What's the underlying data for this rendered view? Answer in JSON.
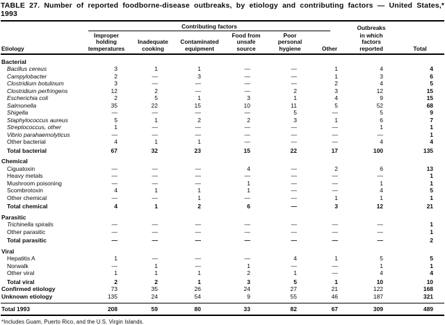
{
  "title": "TABLE 27. Number of reported foodborne-disease outbreaks, by etiology and contributing factors — United States,* 1993",
  "header": {
    "etiology_label": "Etiology",
    "contributing_factors_label": "Contributing factors",
    "outbreaks_label_top": "Outbreaks",
    "outbreaks_label_rest": "in which\nfactors\nreported",
    "total_label": "Total",
    "factor_columns": [
      "Improper\nholding\ntemperatures",
      "Inadequate\ncooking",
      "Contaminated\nequipment",
      "Food from\nunsafe\nsource",
      "Poor\npersonal\nhygiene",
      "Other"
    ]
  },
  "sections": [
    {
      "name": "Bacterial",
      "rows": [
        {
          "label": "Bacillus cereus",
          "italic": true,
          "values": [
            "3",
            "1",
            "1",
            "—",
            "—",
            "1",
            "4",
            "4"
          ]
        },
        {
          "label": "Campylobacter",
          "italic": true,
          "values": [
            "2",
            "—",
            "3",
            "—",
            "—",
            "1",
            "3",
            "6"
          ]
        },
        {
          "label": "Clostridium botulinum",
          "italic": true,
          "values": [
            "3",
            "—",
            "—",
            "—",
            "—",
            "2",
            "4",
            "5"
          ]
        },
        {
          "label": "Clostridium perfringens",
          "italic": true,
          "values": [
            "12",
            "2",
            "—",
            "—",
            "2",
            "3",
            "12",
            "15"
          ]
        },
        {
          "label": "Escherichia coli",
          "italic": true,
          "values": [
            "2",
            "5",
            "1",
            "3",
            "1",
            "4",
            "9",
            "15"
          ]
        },
        {
          "label": "Salmonella",
          "italic": true,
          "values": [
            "35",
            "22",
            "15",
            "10",
            "11",
            "5",
            "52",
            "68"
          ]
        },
        {
          "label": "Shigella",
          "italic": true,
          "values": [
            "—",
            "—",
            "—",
            "—",
            "5",
            "—",
            "5",
            "9"
          ]
        },
        {
          "label": "Staphylococcus aureus",
          "italic": true,
          "values": [
            "5",
            "1",
            "2",
            "2",
            "3",
            "1",
            "6",
            "7"
          ]
        },
        {
          "label": "Streptococcus, other",
          "italic": true,
          "values": [
            "1",
            "—",
            "—",
            "—",
            "—",
            "—",
            "1",
            "1"
          ]
        },
        {
          "label": "Vibrio parahaemolyticus",
          "italic": true,
          "values": [
            "—",
            "—",
            "—",
            "—",
            "—",
            "—",
            "—",
            "1"
          ]
        },
        {
          "label": "Other bacterial",
          "italic": false,
          "values": [
            "4",
            "1",
            "1",
            "—",
            "—",
            "—",
            "4",
            "4"
          ]
        }
      ],
      "total_row": {
        "label": "Total bacterial",
        "values": [
          "67",
          "32",
          "23",
          "15",
          "22",
          "17",
          "100",
          "135"
        ]
      }
    },
    {
      "name": "Chemical",
      "rows": [
        {
          "label": "Ciguatoxin",
          "italic": false,
          "values": [
            "—",
            "—",
            "—",
            "4",
            "—",
            "2",
            "6",
            "13"
          ]
        },
        {
          "label": "Heavy metals",
          "italic": false,
          "values": [
            "—",
            "—",
            "—",
            "—",
            "—",
            "—",
            "—",
            "1"
          ]
        },
        {
          "label": "Mushroom poisoning",
          "italic": false,
          "values": [
            "—",
            "—",
            "—",
            "1",
            "—",
            "—",
            "1",
            "1"
          ]
        },
        {
          "label": "Scombrotoxin",
          "italic": false,
          "values": [
            "4",
            "1",
            "1",
            "1",
            "—",
            "—",
            "4",
            "5"
          ]
        },
        {
          "label": "Other chemical",
          "italic": false,
          "values": [
            "—",
            "—",
            "1",
            "—",
            "—",
            "1",
            "1",
            "1"
          ]
        }
      ],
      "total_row": {
        "label": "Total chemical",
        "values": [
          "4",
          "1",
          "2",
          "6",
          "—",
          "3",
          "12",
          "21"
        ]
      }
    },
    {
      "name": "Parasitic",
      "rows": [
        {
          "label": "Trichinella spiralis",
          "italic": true,
          "values": [
            "—",
            "—",
            "—",
            "—",
            "—",
            "—",
            "—",
            "1"
          ]
        },
        {
          "label": "Other parasitic",
          "italic": false,
          "values": [
            "—",
            "—",
            "—",
            "—",
            "—",
            "—",
            "—",
            "1"
          ]
        }
      ],
      "total_row": {
        "label": "Total parasitic",
        "values": [
          "—",
          "—",
          "—",
          "—",
          "—",
          "—",
          "—",
          "2"
        ]
      }
    },
    {
      "name": "Viral",
      "rows": [
        {
          "label": "Hepatitis A",
          "italic": false,
          "values": [
            "1",
            "—",
            "—",
            "—",
            "4",
            "1",
            "5",
            "5"
          ]
        },
        {
          "label": "Norwalk",
          "italic": false,
          "values": [
            "—",
            "1",
            "—",
            "1",
            "—",
            "—",
            "1",
            "1"
          ]
        },
        {
          "label": "Other viral",
          "italic": false,
          "values": [
            "1",
            "1",
            "1",
            "2",
            "1",
            "—",
            "4",
            "4"
          ]
        }
      ],
      "total_row": {
        "label": "Total viral",
        "values": [
          "2",
          "2",
          "1",
          "3",
          "5",
          "1",
          "10",
          "10"
        ]
      }
    }
  ],
  "summary_rows": [
    {
      "label": "Confirmed etiology",
      "values": [
        "73",
        "35",
        "26",
        "24",
        "27",
        "21",
        "122",
        "168"
      ],
      "all_bold": false,
      "grand": false
    },
    {
      "label": "Unknown etiology",
      "values": [
        "135",
        "24",
        "54",
        "9",
        "55",
        "46",
        "187",
        "321"
      ],
      "all_bold": false,
      "grand": false
    },
    {
      "label": "Total 1993",
      "values": [
        "208",
        "59",
        "80",
        "33",
        "82",
        "67",
        "309",
        "489"
      ],
      "all_bold": true,
      "grand": true
    }
  ],
  "footnote": "*Includes Guam, Puerto Rico, and the U.S. Virgin Islands."
}
